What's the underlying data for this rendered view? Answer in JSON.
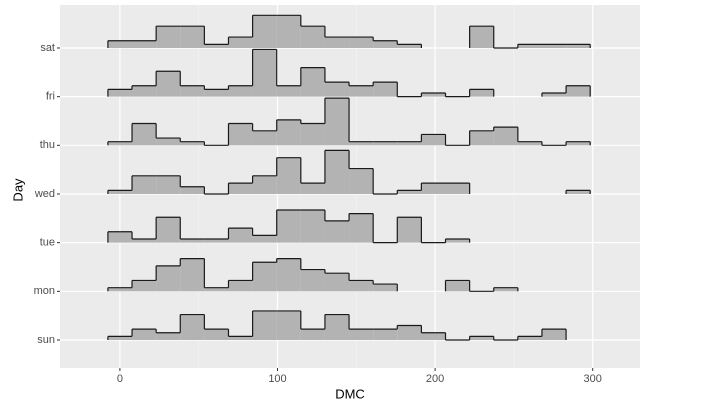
{
  "chart_data": {
    "type": "ridgeline",
    "x_label": "DMC",
    "y_label": "Day",
    "xlim": [
      -38,
      330
    ],
    "xticks": [
      0,
      100,
      200,
      300
    ],
    "xminor": [
      50,
      150,
      250
    ],
    "categories": [
      "sun",
      "mon",
      "tue",
      "wed",
      "thu",
      "fri",
      "sat"
    ],
    "bins": [
      -7.6,
      7.7,
      23.0,
      38.3,
      53.6,
      68.9,
      84.2,
      99.5,
      114.8,
      130.1,
      145.4,
      160.7,
      176.0,
      191.3,
      206.6,
      221.9,
      237.2,
      252.5,
      267.8,
      283.1,
      298.4
    ],
    "values": [
      [
        1,
        3,
        2,
        7,
        3,
        1,
        8,
        8,
        3,
        7,
        3,
        3,
        4,
        2,
        0,
        1,
        0,
        1,
        3,
        null
      ],
      [
        1,
        3,
        7,
        9,
        1,
        3,
        8,
        9,
        6,
        5,
        3,
        2,
        null,
        null,
        3,
        0,
        1,
        null,
        null,
        null
      ],
      [
        3,
        1,
        7,
        1,
        1,
        4,
        2,
        9,
        9,
        6,
        8,
        0,
        7,
        0,
        1,
        null,
        null,
        null,
        null,
        null
      ],
      [
        1,
        5,
        5,
        2,
        0,
        3,
        5,
        10,
        3,
        12,
        7,
        0,
        1,
        3,
        3,
        null,
        null,
        null,
        null,
        1
      ],
      [
        1,
        6,
        2,
        1,
        0,
        6,
        4,
        7,
        6,
        13,
        1,
        1,
        1,
        3,
        0,
        4,
        5,
        1,
        0,
        1
      ],
      [
        2,
        3,
        7,
        3,
        2,
        3,
        13,
        3,
        8,
        4,
        3,
        4,
        0,
        1,
        0,
        2,
        null,
        null,
        1,
        3
      ],
      [
        2,
        2,
        6,
        6,
        1,
        3,
        9,
        9,
        6,
        3,
        3,
        2,
        1,
        null,
        null,
        6,
        0,
        1,
        1,
        1
      ]
    ],
    "fill": "#b3b3b3",
    "line_color": "#1a1a1a",
    "grid": true
  }
}
